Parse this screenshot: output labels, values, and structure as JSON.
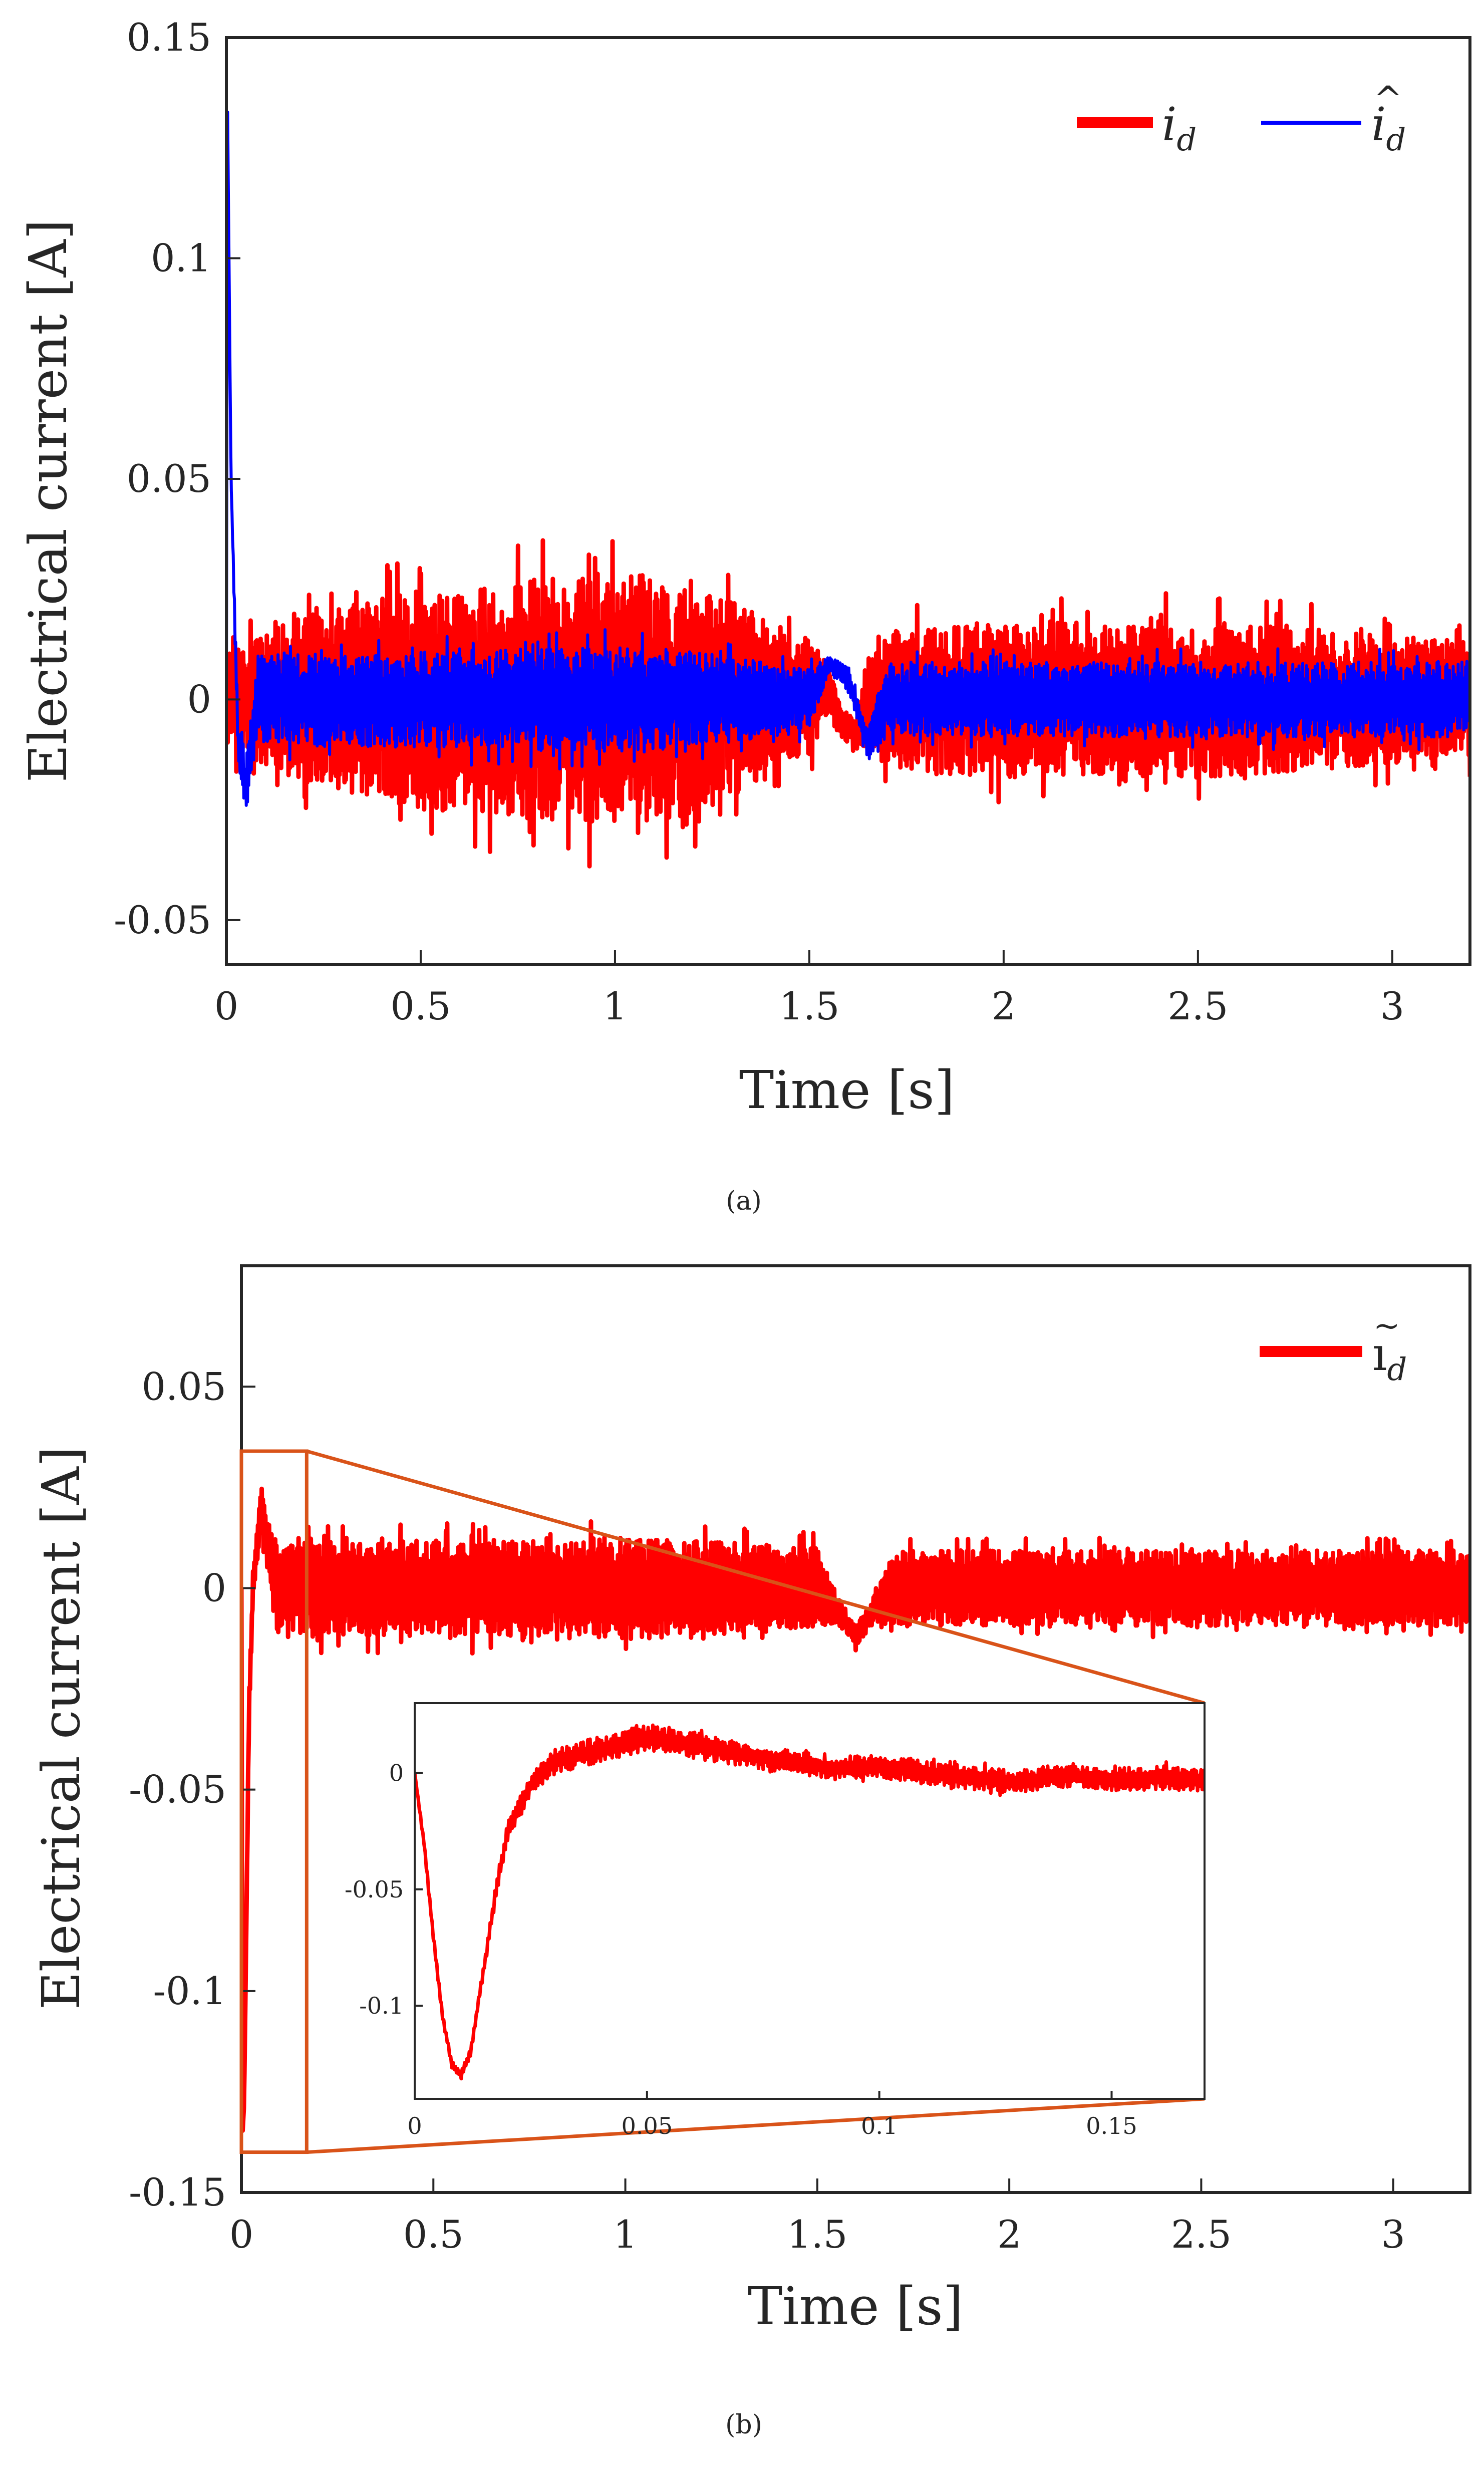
{
  "figure": {
    "background": "#ffffff",
    "axis_color": "#262626",
    "zoom_color": "#d95319"
  },
  "chart_data": [
    {
      "id": "a",
      "type": "line",
      "caption": "(a)",
      "title": "",
      "xlabel": "Time [s]",
      "ylabel": "Electrical current [A]",
      "xlim": [
        0,
        3.2
      ],
      "ylim": [
        -0.06,
        0.15
      ],
      "xticks": [
        0,
        0.5,
        1,
        1.5,
        2,
        2.5,
        3
      ],
      "xtick_labels": [
        "0",
        "0.5",
        "1",
        "1.5",
        "2",
        "2.5",
        "3"
      ],
      "yticks": [
        -0.05,
        0,
        0.05,
        0.1,
        0.15
      ],
      "ytick_labels": [
        "-0.05",
        "0",
        "0.05",
        "0.1",
        "0.15"
      ],
      "grid": false,
      "legend": {
        "position": "top-right",
        "entries": [
          {
            "main": "i",
            "sub": "d",
            "accent": ""
          },
          {
            "main": "i",
            "sub": "d",
            "accent": "^"
          }
        ]
      },
      "series": [
        {
          "name": "i_d",
          "color": "#ff0000",
          "width": 9,
          "x": [
            0,
            0.05,
            0.1,
            0.2,
            0.3,
            0.4,
            0.5,
            0.6,
            0.7,
            0.8,
            0.9,
            1.0,
            1.1,
            1.2,
            1.3,
            1.4,
            1.5,
            1.55,
            1.58,
            1.62,
            1.65,
            1.7,
            1.8,
            1.9,
            2.0,
            2.1,
            2.2,
            2.3,
            2.4,
            2.5,
            2.6,
            2.7,
            2.8,
            2.9,
            3.0,
            3.1,
            3.2
          ],
          "mean": [
            0,
            0,
            0,
            0,
            0,
            0,
            0,
            0,
            0,
            0,
            0,
            0,
            0,
            0,
            0,
            0,
            0,
            0.003,
            -0.005,
            -0.008,
            0,
            0,
            0,
            0,
            0,
            0,
            0,
            0,
            0,
            0,
            0,
            0,
            0,
            0,
            0,
            0,
            0
          ],
          "amplitude": [
            0.014,
            0.015,
            0.018,
            0.022,
            0.025,
            0.027,
            0.029,
            0.03,
            0.031,
            0.032,
            0.033,
            0.034,
            0.033,
            0.03,
            0.026,
            0.021,
            0.016,
            0.006,
            0.004,
            0.004,
            0.012,
            0.018,
            0.019,
            0.02,
            0.021,
            0.021,
            0.02,
            0.02,
            0.021,
            0.021,
            0.02,
            0.02,
            0.019,
            0.018,
            0.017,
            0.016,
            0.016
          ]
        },
        {
          "name": "î_d",
          "color": "#0000ff",
          "width": 6,
          "x": [
            0,
            0.003,
            0.012,
            0.03,
            0.05,
            0.08,
            0.2,
            0.5,
            1.0,
            1.2,
            1.5,
            1.55,
            1.6,
            1.65,
            1.7,
            2.0,
            2.5,
            3.0,
            3.2
          ],
          "mean": [
            0,
            0.135,
            0.05,
            -0.01,
            -0.02,
            0,
            0,
            0,
            0,
            0,
            0,
            0.008,
            0.005,
            -0.01,
            0,
            0,
            0,
            0,
            0
          ],
          "amplitude": [
            0,
            0,
            0,
            0.006,
            0.008,
            0.012,
            0.012,
            0.013,
            0.014,
            0.013,
            0.008,
            0.002,
            0.003,
            0.004,
            0.01,
            0.01,
            0.01,
            0.01,
            0.01
          ]
        }
      ]
    },
    {
      "id": "b",
      "type": "line",
      "caption": "(b)",
      "title": "",
      "xlabel": "Time [s]",
      "ylabel": "Electrical current [A]",
      "xlim": [
        0,
        3.2
      ],
      "ylim": [
        -0.15,
        0.08
      ],
      "xticks": [
        0,
        0.5,
        1,
        1.5,
        2,
        2.5,
        3
      ],
      "xtick_labels": [
        "0",
        "0.5",
        "1",
        "1.5",
        "2",
        "2.5",
        "3"
      ],
      "yticks": [
        -0.15,
        -0.1,
        -0.05,
        0,
        0.05
      ],
      "ytick_labels": [
        "-0.15",
        "-0.1",
        "-0.05",
        "0",
        "0.05"
      ],
      "grid": false,
      "legend": {
        "position": "top-right",
        "entries": [
          {
            "main": "ı",
            "sub": "d",
            "accent": "~"
          }
        ]
      },
      "zoom_box": {
        "x": [
          0,
          0.17
        ],
        "y": [
          -0.14,
          0.034
        ]
      },
      "series": [
        {
          "name": "ĩ_d",
          "color": "#ff0000",
          "width": 9,
          "x": [
            0,
            0.003,
            0.007,
            0.012,
            0.02,
            0.03,
            0.05,
            0.08,
            0.1,
            0.2,
            0.5,
            1.0,
            1.5,
            1.55,
            1.6,
            1.65,
            1.7,
            2.0,
            2.5,
            3.0,
            3.2
          ],
          "mean": [
            0,
            -0.135,
            -0.128,
            -0.09,
            -0.03,
            0,
            0.02,
            0.005,
            0,
            0,
            0,
            0,
            0,
            -0.005,
            -0.012,
            -0.005,
            0,
            0,
            0,
            0,
            0
          ],
          "amplitude": [
            0,
            0,
            0,
            0,
            0.004,
            0.006,
            0.008,
            0.01,
            0.012,
            0.014,
            0.014,
            0.015,
            0.012,
            0.004,
            0.003,
            0.004,
            0.011,
            0.011,
            0.011,
            0.011,
            0.011
          ]
        }
      ],
      "inset": {
        "xlim": [
          0,
          0.17
        ],
        "ylim": [
          -0.14,
          0.03
        ],
        "xticks": [
          0,
          0.05,
          0.1,
          0.15
        ],
        "xtick_labels": [
          "0",
          "0.05",
          "0.1",
          "0.15"
        ],
        "yticks": [
          -0.1,
          -0.05,
          0
        ],
        "ytick_labels": [
          "-0.1",
          "-0.05",
          "0"
        ],
        "series": [
          {
            "name": "ĩ_d zoom",
            "color": "#ff0000",
            "width": 7,
            "x": [
              0,
              0.002,
              0.004,
              0.006,
              0.008,
              0.01,
              0.012,
              0.014,
              0.016,
              0.018,
              0.02,
              0.025,
              0.03,
              0.04,
              0.05,
              0.06,
              0.07,
              0.08,
              0.09,
              0.1,
              0.11,
              0.12,
              0.13,
              0.14,
              0.15,
              0.16,
              0.17
            ],
            "mean": [
              0,
              -0.03,
              -0.07,
              -0.105,
              -0.125,
              -0.13,
              -0.12,
              -0.095,
              -0.07,
              -0.045,
              -0.025,
              -0.005,
              0.005,
              0.01,
              0.015,
              0.012,
              0.008,
              0.005,
              0.002,
              0.003,
              0,
              -0.002,
              -0.004,
              -0.001,
              -0.003,
              -0.002,
              -0.003
            ],
            "amplitude": [
              0,
              0.002,
              0.002,
              0.002,
              0.002,
              0.002,
              0.002,
              0.002,
              0.003,
              0.004,
              0.005,
              0.006,
              0.006,
              0.007,
              0.007,
              0.007,
              0.006,
              0.006,
              0.006,
              0.006,
              0.006,
              0.006,
              0.006,
              0.006,
              0.006,
              0.006,
              0.006
            ]
          }
        ]
      }
    }
  ]
}
